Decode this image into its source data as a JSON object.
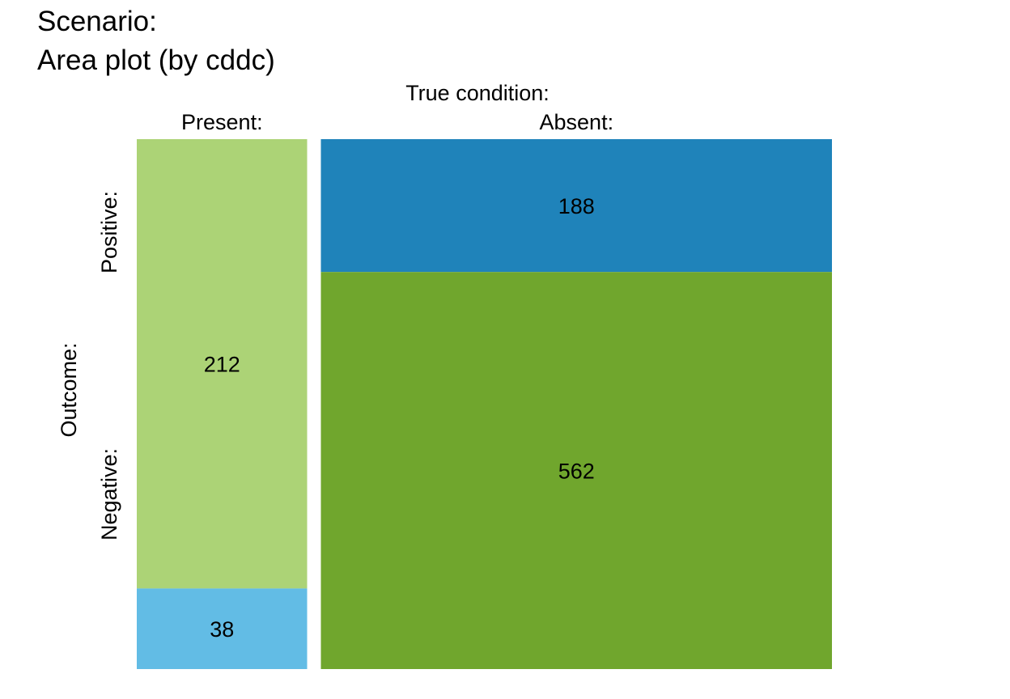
{
  "chart_data": {
    "type": "mosaic",
    "title_lines": [
      "Scenario:",
      "Area plot (by cddc)"
    ],
    "column_header": "True condition:",
    "row_header": "Outcome:",
    "columns": [
      {
        "label": "Present:",
        "cells": [
          {
            "key": "positive",
            "value": 212,
            "color": "#ACD376"
          },
          {
            "key": "negative",
            "value": 38,
            "color": "#62BCE5"
          }
        ]
      },
      {
        "label": "Absent:",
        "cells": [
          {
            "key": "positive",
            "value": 188,
            "color": "#1F83BA"
          },
          {
            "key": "negative",
            "value": 562,
            "color": "#70A62D"
          }
        ]
      }
    ],
    "row_labels": [
      "Positive:",
      "Negative:"
    ]
  }
}
